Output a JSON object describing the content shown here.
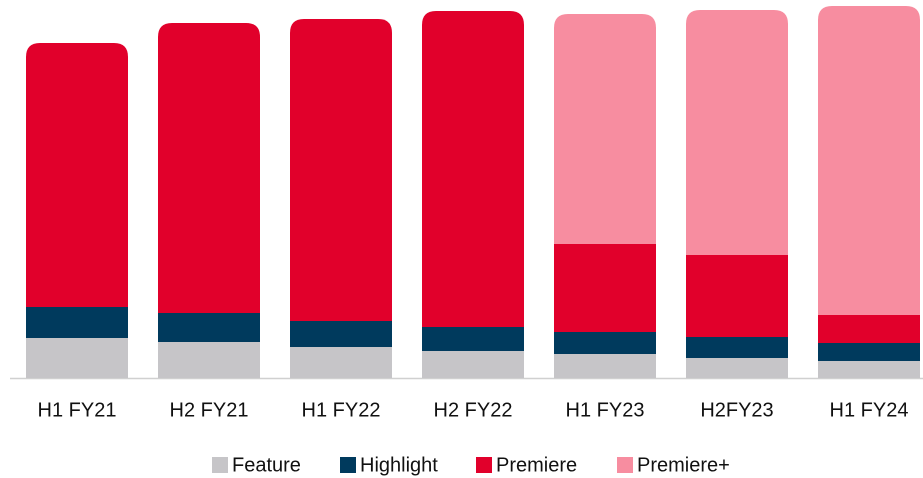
{
  "chart_data": {
    "type": "stacked-bar",
    "categories": [
      "H1 FY21",
      "H2 FY21",
      "H1 FY22",
      "H2 FY22",
      "H1 FY23",
      "H2FY23",
      "H1 FY24"
    ],
    "series": [
      {
        "name": "Feature",
        "color": "#c6c5c8",
        "values": [
          40,
          36,
          31,
          27,
          24,
          20,
          17
        ]
      },
      {
        "name": "Highlight",
        "color": "#003a5d",
        "values": [
          31,
          29,
          26,
          24,
          22,
          21,
          18
        ]
      },
      {
        "name": "Premiere",
        "color": "#e1002b",
        "values": [
          264,
          290,
          302,
          316,
          88,
          82,
          28
        ]
      },
      {
        "name": "Premiere+",
        "color": "#f78da0",
        "values": [
          0,
          0,
          0,
          0,
          230,
          245,
          309
        ]
      }
    ]
  }
}
